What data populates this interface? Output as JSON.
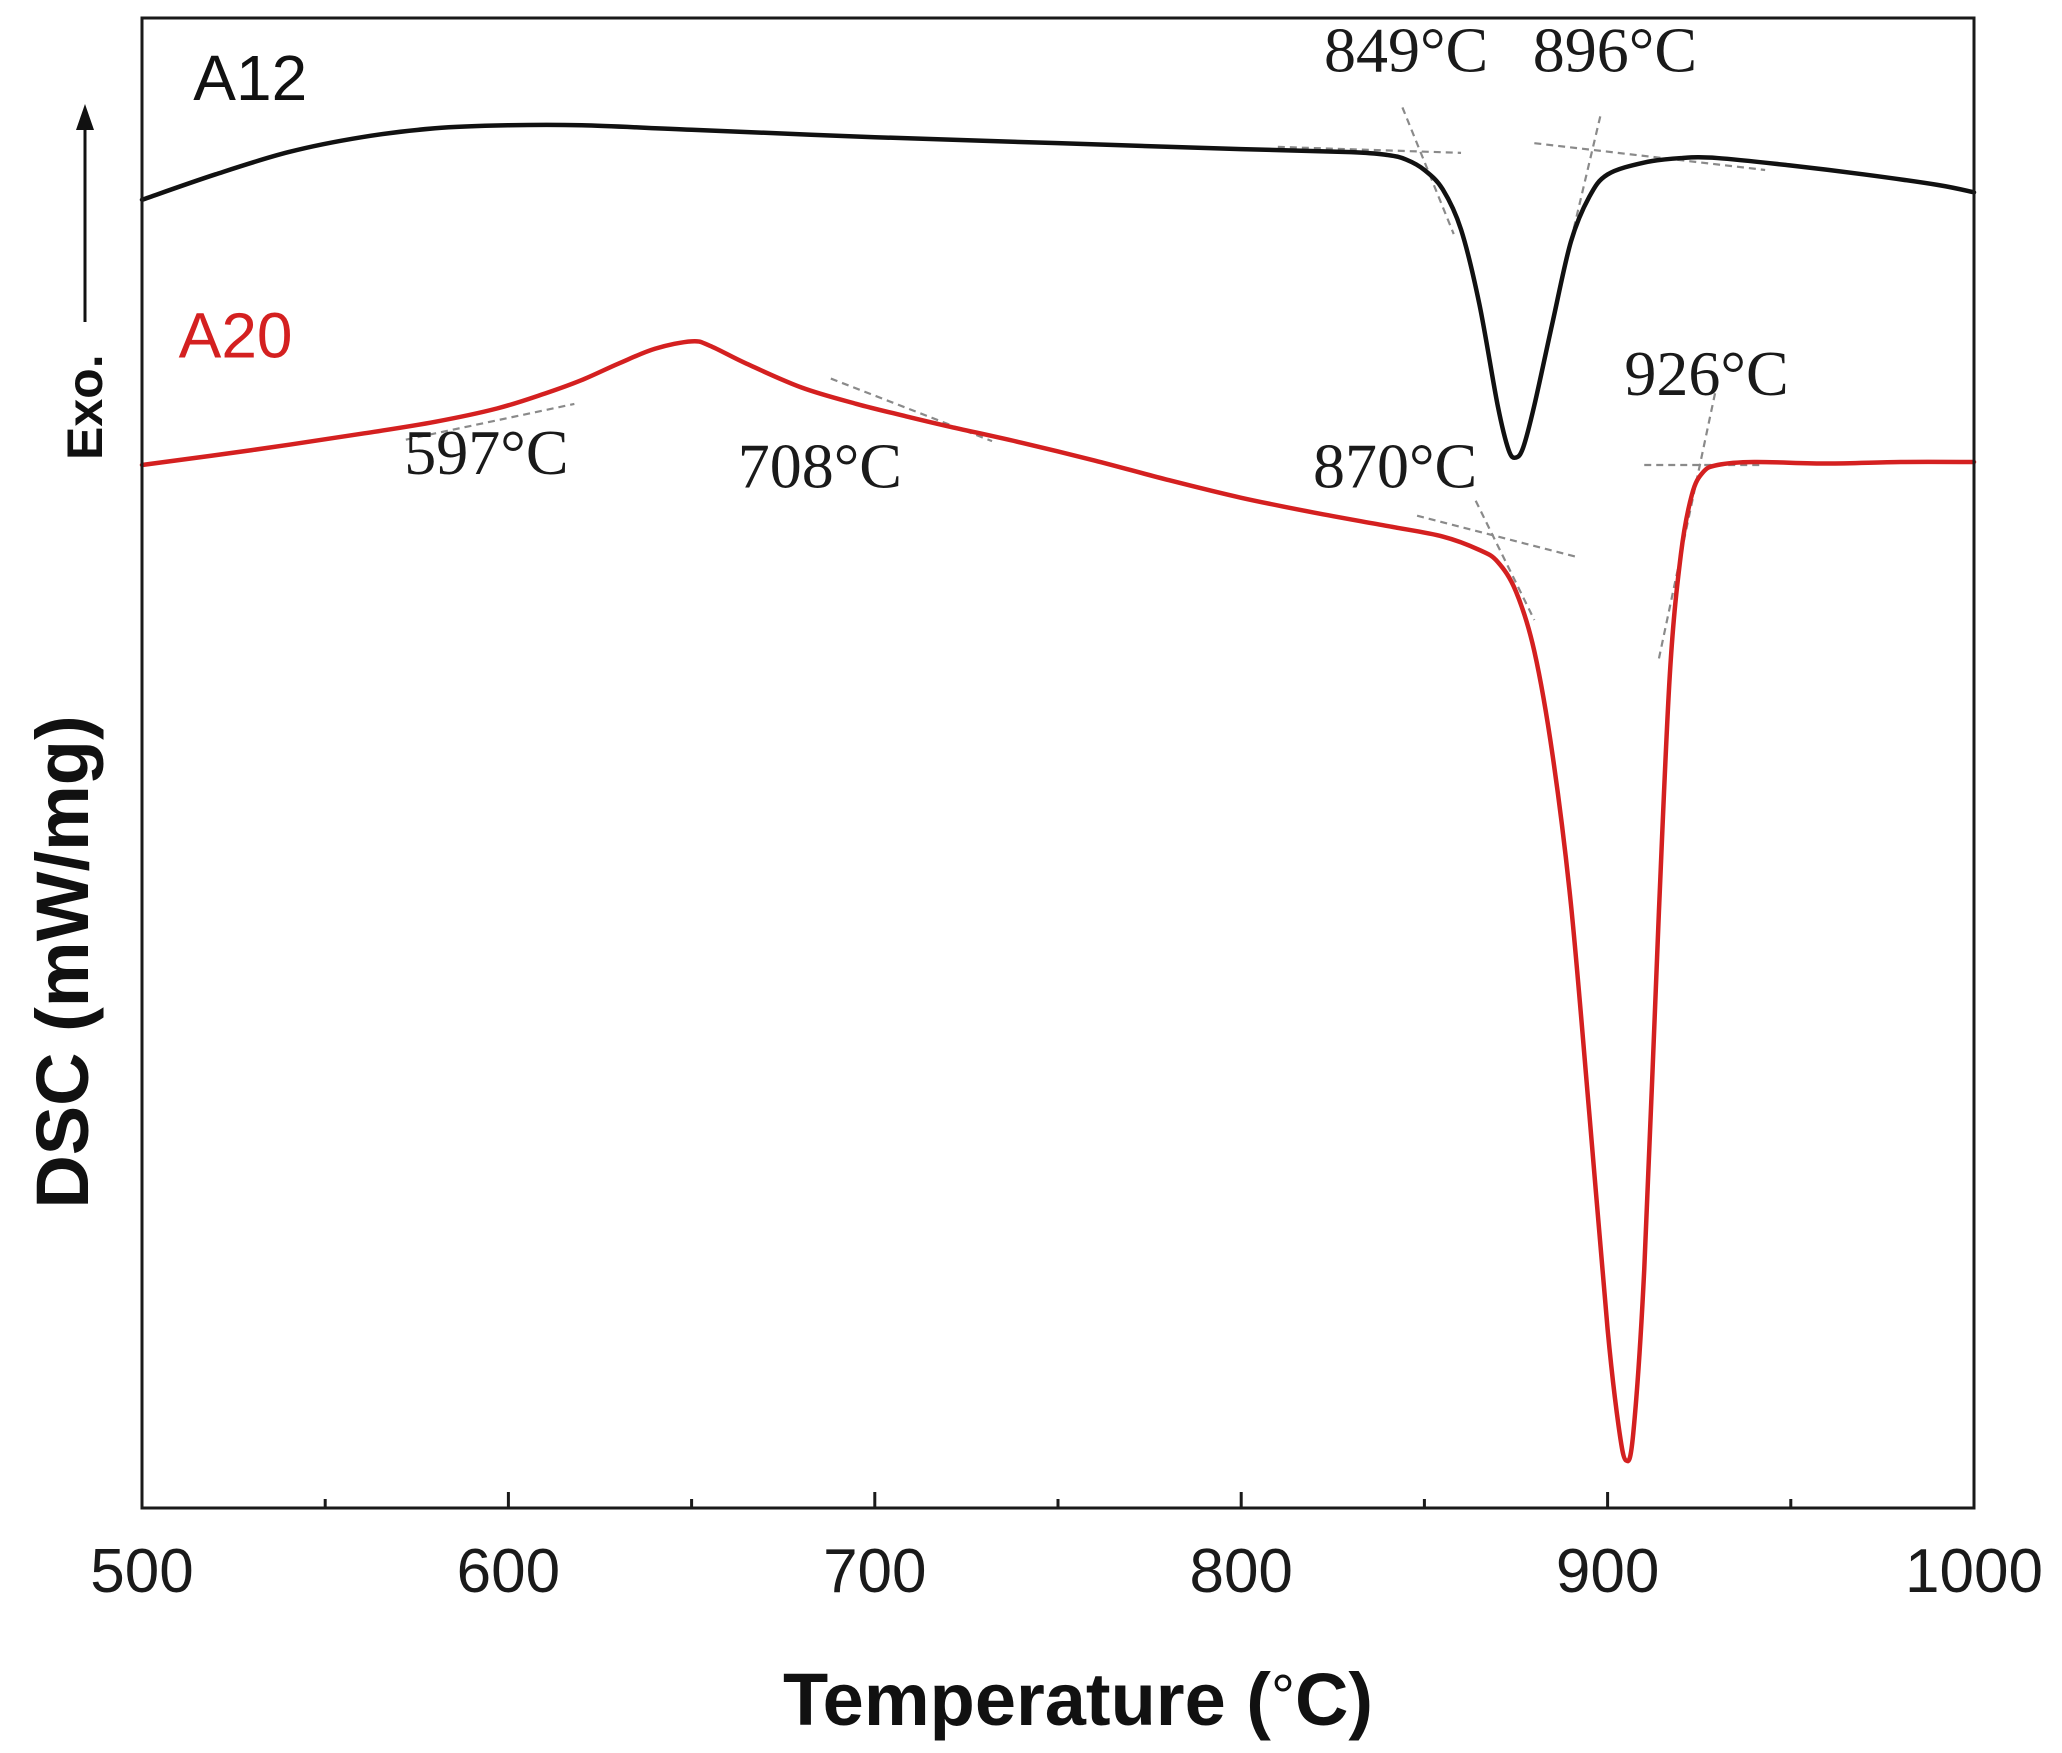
{
  "chart_data": {
    "type": "line",
    "title": "",
    "xlabel": "Temperature (°C)",
    "xlabel_parts": [
      "Temperature (",
      "°",
      "C)"
    ],
    "ylabel": "DSC (mW/mg)",
    "y_direction_label": "Exo.",
    "xlim": [
      500,
      1000
    ],
    "ylim": [
      0,
      100
    ],
    "y_units_note": "arbitrary (no y tick labels shown)",
    "x_ticks": [
      500,
      600,
      700,
      800,
      900,
      1000
    ],
    "x_tick_labels": [
      "500",
      "600",
      "700",
      "800",
      "900",
      "1000"
    ],
    "x_minor_ticks": [
      550,
      650,
      750,
      850,
      950
    ],
    "grid": false,
    "series": [
      {
        "name": "A12",
        "color": "#111111",
        "points": [
          [
            500,
            87.8
          ],
          [
            520,
            89.5
          ],
          [
            540,
            91.0
          ],
          [
            560,
            92.0
          ],
          [
            580,
            92.6
          ],
          [
            600,
            92.8
          ],
          [
            620,
            92.8
          ],
          [
            650,
            92.5
          ],
          [
            700,
            92.0
          ],
          [
            750,
            91.6
          ],
          [
            800,
            91.2
          ],
          [
            830,
            91.0
          ],
          [
            840,
            90.8
          ],
          [
            845,
            90.5
          ],
          [
            850,
            89.8
          ],
          [
            855,
            88.5
          ],
          [
            860,
            85.8
          ],
          [
            865,
            80.8
          ],
          [
            870,
            74.0
          ],
          [
            873,
            71.0
          ],
          [
            875,
            70.5
          ],
          [
            877,
            71.2
          ],
          [
            880,
            74.0
          ],
          [
            885,
            79.6
          ],
          [
            890,
            85.0
          ],
          [
            895,
            88.0
          ],
          [
            900,
            89.5
          ],
          [
            910,
            90.3
          ],
          [
            920,
            90.6
          ],
          [
            930,
            90.6
          ],
          [
            950,
            90.1
          ],
          [
            970,
            89.5
          ],
          [
            990,
            88.8
          ],
          [
            1000,
            88.3
          ]
        ]
      },
      {
        "name": "A20",
        "color": "#d42020",
        "points": [
          [
            500,
            70.0
          ],
          [
            530,
            71.0
          ],
          [
            560,
            72.1
          ],
          [
            580,
            72.9
          ],
          [
            597,
            73.8
          ],
          [
            610,
            74.8
          ],
          [
            620,
            75.7
          ],
          [
            630,
            76.8
          ],
          [
            640,
            77.8
          ],
          [
            650,
            78.3
          ],
          [
            655,
            78.0
          ],
          [
            665,
            76.8
          ],
          [
            680,
            75.2
          ],
          [
            695,
            74.1
          ],
          [
            708,
            73.3
          ],
          [
            720,
            72.6
          ],
          [
            740,
            71.5
          ],
          [
            760,
            70.3
          ],
          [
            780,
            69.0
          ],
          [
            800,
            67.8
          ],
          [
            820,
            66.8
          ],
          [
            840,
            65.9
          ],
          [
            855,
            65.2
          ],
          [
            865,
            64.3
          ],
          [
            870,
            63.5
          ],
          [
            875,
            61.5
          ],
          [
            880,
            57.5
          ],
          [
            885,
            50.5
          ],
          [
            890,
            40.5
          ],
          [
            895,
            26.5
          ],
          [
            900,
            12.0
          ],
          [
            903,
            5.5
          ],
          [
            905,
            3.2
          ],
          [
            907,
            5.0
          ],
          [
            910,
            16.0
          ],
          [
            914,
            40.0
          ],
          [
            917,
            56.0
          ],
          [
            920,
            64.0
          ],
          [
            923,
            68.0
          ],
          [
            926,
            69.5
          ],
          [
            930,
            70.0
          ],
          [
            940,
            70.2
          ],
          [
            960,
            70.1
          ],
          [
            980,
            70.2
          ],
          [
            1000,
            70.2
          ]
        ]
      }
    ],
    "annotations": [
      {
        "series": "A12",
        "text": "849°C",
        "temperature": 849,
        "label_pos": [
          845,
          96.4
        ]
      },
      {
        "series": "A12",
        "text": "896°C",
        "temperature": 896,
        "label_pos": [
          902,
          96.4
        ]
      },
      {
        "series": "A20",
        "text": "597°C",
        "temperature": 597,
        "label_pos": [
          594,
          69.4
        ]
      },
      {
        "series": "A20",
        "text": "708°C",
        "temperature": 708,
        "label_pos": [
          685,
          68.5
        ]
      },
      {
        "series": "A20",
        "text": "870°C",
        "temperature": 870,
        "label_pos": [
          842,
          68.5
        ]
      },
      {
        "series": "A20",
        "text": "926°C",
        "temperature": 926,
        "label_pos": [
          927,
          74.7
        ]
      }
    ],
    "tangent_lines": [
      {
        "series": "A12",
        "from": [
          810,
          91.35
        ],
        "to": [
          860,
          90.95
        ]
      },
      {
        "series": "A12",
        "from": [
          844,
          94.0
        ],
        "to": [
          858,
          85.5
        ]
      },
      {
        "series": "A12",
        "from": [
          880,
          91.6
        ],
        "to": [
          943,
          89.8
        ]
      },
      {
        "series": "A12",
        "from": [
          898,
          93.4
        ],
        "to": [
          888,
          83.0
        ]
      },
      {
        "series": "A20",
        "from": [
          572,
          71.7
        ],
        "to": [
          618,
          74.1
        ]
      },
      {
        "series": "A20",
        "from": [
          688,
          75.8
        ],
        "to": [
          732,
          71.6
        ]
      },
      {
        "series": "A20",
        "from": [
          848,
          66.6
        ],
        "to": [
          892,
          63.8
        ]
      },
      {
        "series": "A20",
        "from": [
          864,
          67.6
        ],
        "to": [
          880,
          59.6
        ]
      },
      {
        "series": "A20",
        "from": [
          910,
          70.0
        ],
        "to": [
          942,
          70.0
        ]
      },
      {
        "series": "A20",
        "from": [
          930,
          75.6
        ],
        "to": [
          914,
          57.0
        ]
      }
    ],
    "series_labels": [
      {
        "text": "A12",
        "color": "#111111",
        "pos": [
          514,
          94.5
        ]
      },
      {
        "text": "A20",
        "color": "#d42020",
        "pos": [
          510,
          77.2
        ]
      }
    ]
  }
}
